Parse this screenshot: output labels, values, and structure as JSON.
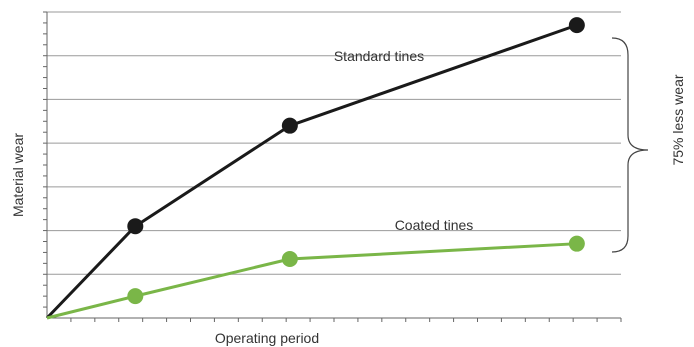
{
  "chart_data": {
    "type": "line",
    "xlabel": "Operating period",
    "ylabel": "Material wear",
    "x": [
      0,
      2,
      5.5,
      12
    ],
    "xlim": [
      0,
      13
    ],
    "ylim": [
      0,
      7
    ],
    "grid": true,
    "series": [
      {
        "name": "Standard tines",
        "color": "#1a1a1a",
        "values": [
          0,
          2.1,
          4.4,
          6.7
        ]
      },
      {
        "name": "Coated tines",
        "color": "#7ab648",
        "values": [
          0,
          0.5,
          1.35,
          1.7
        ]
      }
    ],
    "annotations": [
      {
        "text": "75% less wear",
        "type": "brace"
      }
    ]
  }
}
